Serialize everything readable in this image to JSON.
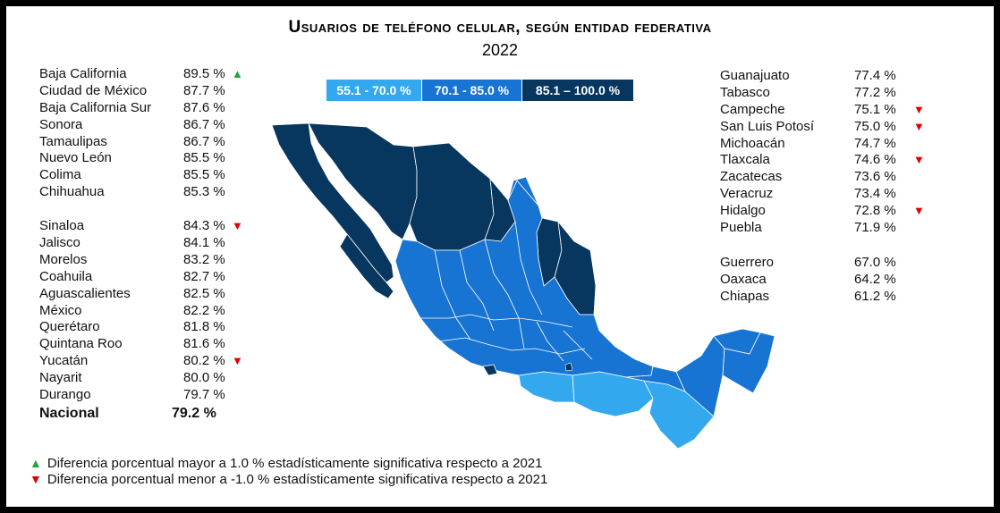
{
  "title": "Usuarios de teléfono celular, según entidad federativa",
  "subtitle": "2022",
  "legend": [
    {
      "label": "55.1 - 70.0 %",
      "color": "#33a8ef"
    },
    {
      "label": "70.1 - 85.0 %",
      "color": "#1874d2"
    },
    {
      "label": "85.1 – 100.0 %",
      "color": "#07365f"
    }
  ],
  "left_group1": [
    {
      "name": "Baja California",
      "pct": "89.5 %",
      "mark": "up"
    },
    {
      "name": "Ciudad de México",
      "pct": "87.7 %",
      "mark": ""
    },
    {
      "name": "Baja California Sur",
      "pct": "87.6 %",
      "mark": ""
    },
    {
      "name": "Sonora",
      "pct": "86.7 %",
      "mark": ""
    },
    {
      "name": "Tamaulipas",
      "pct": "86.7 %",
      "mark": ""
    },
    {
      "name": "Nuevo León",
      "pct": "85.5 %",
      "mark": ""
    },
    {
      "name": "Colima",
      "pct": "85.5 %",
      "mark": ""
    },
    {
      "name": "Chihuahua",
      "pct": "85.3 %",
      "mark": ""
    }
  ],
  "left_group2": [
    {
      "name": "Sinaloa",
      "pct": "84.3 %",
      "mark": "down"
    },
    {
      "name": "Jalisco",
      "pct": "84.1 %",
      "mark": ""
    },
    {
      "name": "Morelos",
      "pct": "83.2 %",
      "mark": ""
    },
    {
      "name": "Coahuila",
      "pct": "82.7 %",
      "mark": ""
    },
    {
      "name": "Aguascalientes",
      "pct": "82.5 %",
      "mark": ""
    },
    {
      "name": "México",
      "pct": "82.2 %",
      "mark": ""
    },
    {
      "name": "Querétaro",
      "pct": "81.8 %",
      "mark": ""
    },
    {
      "name": "Quintana Roo",
      "pct": "81.6 %",
      "mark": ""
    },
    {
      "name": "Yucatán",
      "pct": "80.2 %",
      "mark": "down"
    },
    {
      "name": "Nayarit",
      "pct": "80.0 %",
      "mark": ""
    },
    {
      "name": "Durango",
      "pct": "79.7 %",
      "mark": ""
    }
  ],
  "nacional": {
    "name": "Nacional",
    "pct": "79.2 %"
  },
  "right_group1": [
    {
      "name": "Guanajuato",
      "pct": "77.4 %",
      "mark": ""
    },
    {
      "name": "Tabasco",
      "pct": "77.2 %",
      "mark": ""
    },
    {
      "name": "Campeche",
      "pct": "75.1 %",
      "mark": "down"
    },
    {
      "name": "San Luis Potosí",
      "pct": "75.0 %",
      "mark": "down"
    },
    {
      "name": "Michoacán",
      "pct": "74.7 %",
      "mark": ""
    },
    {
      "name": "Tlaxcala",
      "pct": "74.6 %",
      "mark": "down"
    },
    {
      "name": "Zacatecas",
      "pct": "73.6 %",
      "mark": ""
    },
    {
      "name": "Veracruz",
      "pct": "73.4 %",
      "mark": ""
    },
    {
      "name": "Hidalgo",
      "pct": "72.8 %",
      "mark": "down"
    },
    {
      "name": "Puebla",
      "pct": "71.9 %",
      "mark": ""
    }
  ],
  "right_group2": [
    {
      "name": "Guerrero",
      "pct": "67.0 %",
      "mark": ""
    },
    {
      "name": "Oaxaca",
      "pct": "64.2 %",
      "mark": ""
    },
    {
      "name": "Chiapas",
      "pct": "61.2 %",
      "mark": ""
    }
  ],
  "footnotes": [
    {
      "symbol": "▲",
      "color": "#1fa53a",
      "text": "Diferencia porcentual mayor a 1.0 % estadísticamente significativa respecto a 2021"
    },
    {
      "symbol": "▼",
      "color": "#e00000",
      "text": "Diferencia porcentual menor a -1.0 % estadísticamente significativa respecto a 2021"
    }
  ],
  "marks": {
    "up": "▲",
    "down": "▼"
  }
}
